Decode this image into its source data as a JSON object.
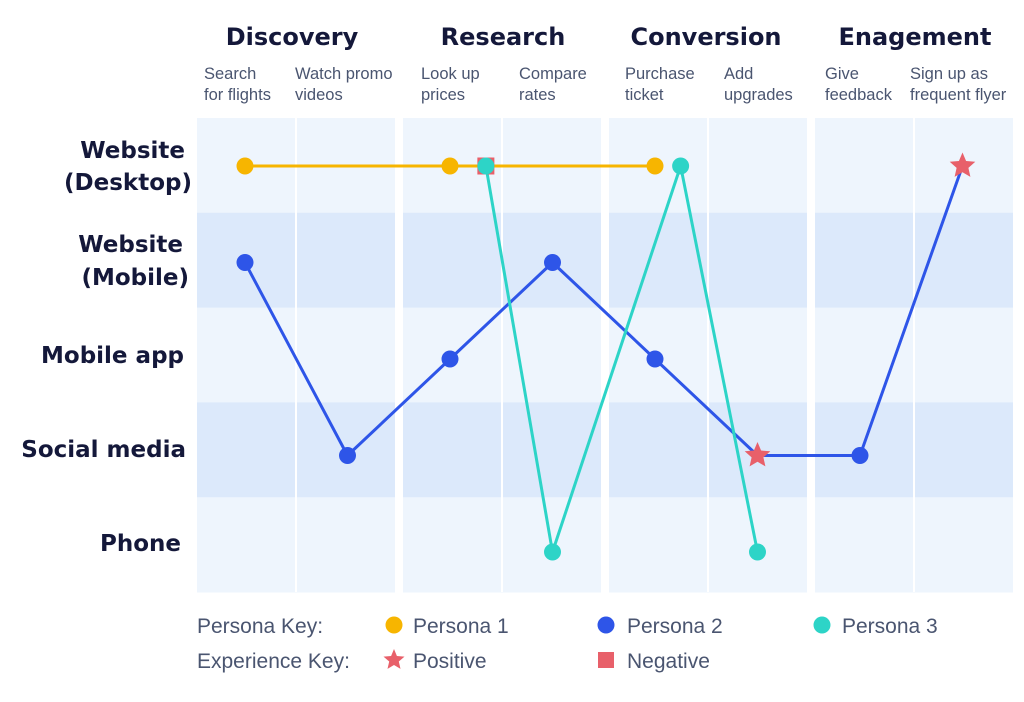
{
  "phases": [
    {
      "title": "Discovery",
      "steps": [
        [
          "Search",
          "for flights"
        ],
        [
          "Watch promo",
          "videos"
        ]
      ]
    },
    {
      "title": "Research",
      "steps": [
        [
          "Look up",
          "prices"
        ],
        [
          "Compare",
          "rates"
        ]
      ]
    },
    {
      "title": "Conversion",
      "steps": [
        [
          "Purchase",
          "ticket"
        ],
        [
          "Add",
          "upgrades"
        ]
      ]
    },
    {
      "title": "Enagement",
      "steps": [
        [
          "Give",
          "feedback"
        ],
        [
          "Sign up as",
          "frequent flyer"
        ]
      ]
    }
  ],
  "channels": [
    [
      "Website",
      "(Desktop)"
    ],
    [
      "Website",
      "(Mobile)"
    ],
    [
      "Mobile app"
    ],
    [
      "Social media"
    ],
    [
      "Phone"
    ]
  ],
  "colors": {
    "persona1": "#f7b500",
    "persona2": "#2e55e8",
    "persona3": "#2dd4c7",
    "positive": "#e8606a",
    "negative": "#e8606a",
    "band_light": "#eef5fd",
    "band_dark": "#dce9fb"
  },
  "personas": [
    {
      "key": "persona1",
      "name": "Persona 1",
      "points": [
        {
          "step": 1,
          "channel": 1
        },
        {
          "step": 3,
          "channel": 1
        },
        {
          "step": 3.35,
          "channel": 1,
          "marker": "negative"
        },
        {
          "step": 5,
          "channel": 1
        }
      ]
    },
    {
      "key": "persona2",
      "name": "Persona 2",
      "points": [
        {
          "step": 1,
          "channel": 2
        },
        {
          "step": 2,
          "channel": 4
        },
        {
          "step": 3,
          "channel": 3
        },
        {
          "step": 4,
          "channel": 2
        },
        {
          "step": 5,
          "channel": 3
        },
        {
          "step": 6,
          "channel": 4,
          "marker": "positive"
        },
        {
          "step": 7,
          "channel": 4
        },
        {
          "step": 8,
          "channel": 1,
          "marker": "positive"
        }
      ]
    },
    {
      "key": "persona3",
      "name": "Persona 3",
      "points": [
        {
          "step": 3.35,
          "channel": 1
        },
        {
          "step": 4,
          "channel": 5
        },
        {
          "step": 5.25,
          "channel": 1
        },
        {
          "step": 6,
          "channel": 5
        }
      ]
    }
  ],
  "legend": {
    "persona_key_label": "Persona Key:",
    "experience_key_label": "Experience Key:",
    "personas": [
      "Persona 1",
      "Persona 2",
      "Persona 3"
    ],
    "experiences": [
      "Positive",
      "Negative"
    ]
  }
}
